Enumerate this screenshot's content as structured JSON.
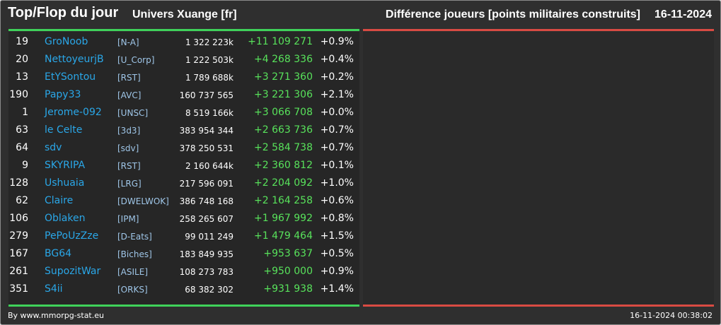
{
  "header": {
    "title": "Top/Flop du jour",
    "universe": "Univers Xuange [fr]",
    "metric": "Différence joueurs [points militaires construits]",
    "date": "16-11-2024"
  },
  "colors": {
    "top_bar": "#3fd25a",
    "flop_bar": "#d94b43",
    "name": "#2aa7e8",
    "delta": "#58e25b"
  },
  "rows": [
    {
      "rank": "19",
      "name": "GroNoob",
      "alliance": "[N-A]",
      "points": "1 322 223k",
      "delta": "+11 109 271",
      "pct": "+0.9%"
    },
    {
      "rank": "20",
      "name": "NettoyeurjB",
      "alliance": "[U_Corp]",
      "points": "1 222 503k",
      "delta": "+4 268 336",
      "pct": "+0.4%"
    },
    {
      "rank": "13",
      "name": "EtYSontou",
      "alliance": "[RST]",
      "points": "1 789 688k",
      "delta": "+3 271 360",
      "pct": "+0.2%"
    },
    {
      "rank": "190",
      "name": "Papy33",
      "alliance": "[AVC]",
      "points": "160 737 565",
      "delta": "+3 221 306",
      "pct": "+2.1%"
    },
    {
      "rank": "1",
      "name": "Jerome-092",
      "alliance": "[UNSC]",
      "points": "8 519 166k",
      "delta": "+3 066 708",
      "pct": "+0.0%"
    },
    {
      "rank": "63",
      "name": "le Celte",
      "alliance": "[3d3]",
      "points": "383 954 344",
      "delta": "+2 663 736",
      "pct": "+0.7%"
    },
    {
      "rank": "64",
      "name": "sdv",
      "alliance": "[sdv]",
      "points": "378 250 531",
      "delta": "+2 584 738",
      "pct": "+0.7%"
    },
    {
      "rank": "9",
      "name": "SKYRIPA",
      "alliance": "[RST]",
      "points": "2 160 644k",
      "delta": "+2 360 812",
      "pct": "+0.1%"
    },
    {
      "rank": "128",
      "name": "Ushuaia",
      "alliance": "[LRG]",
      "points": "217 596 091",
      "delta": "+2 204 092",
      "pct": "+1.0%"
    },
    {
      "rank": "62",
      "name": "Claire",
      "alliance": "[DWELWOK]",
      "points": "386 748 168",
      "delta": "+2 164 258",
      "pct": "+0.6%"
    },
    {
      "rank": "106",
      "name": "Oblaken",
      "alliance": "[IPM]",
      "points": "258 265 607",
      "delta": "+1 967 992",
      "pct": "+0.8%"
    },
    {
      "rank": "279",
      "name": "PePoUzZze",
      "alliance": "[D-Eats]",
      "points": "99 011 249",
      "delta": "+1 479 464",
      "pct": "+1.5%"
    },
    {
      "rank": "167",
      "name": "BG64",
      "alliance": "[Biches]",
      "points": "183 849 935",
      "delta": "+953 637",
      "pct": "+0.5%"
    },
    {
      "rank": "261",
      "name": "SupozitWar",
      "alliance": "[ASILE]",
      "points": "108 273 783",
      "delta": "+950 000",
      "pct": "+0.9%"
    },
    {
      "rank": "351",
      "name": "S4ii",
      "alliance": "[ORKS]",
      "points": "68 382 302",
      "delta": "+931 938",
      "pct": "+1.4%"
    }
  ],
  "footer": {
    "credit": "By www.mmorpg-stat.eu",
    "timestamp": "16-11-2024 00:38:02"
  }
}
